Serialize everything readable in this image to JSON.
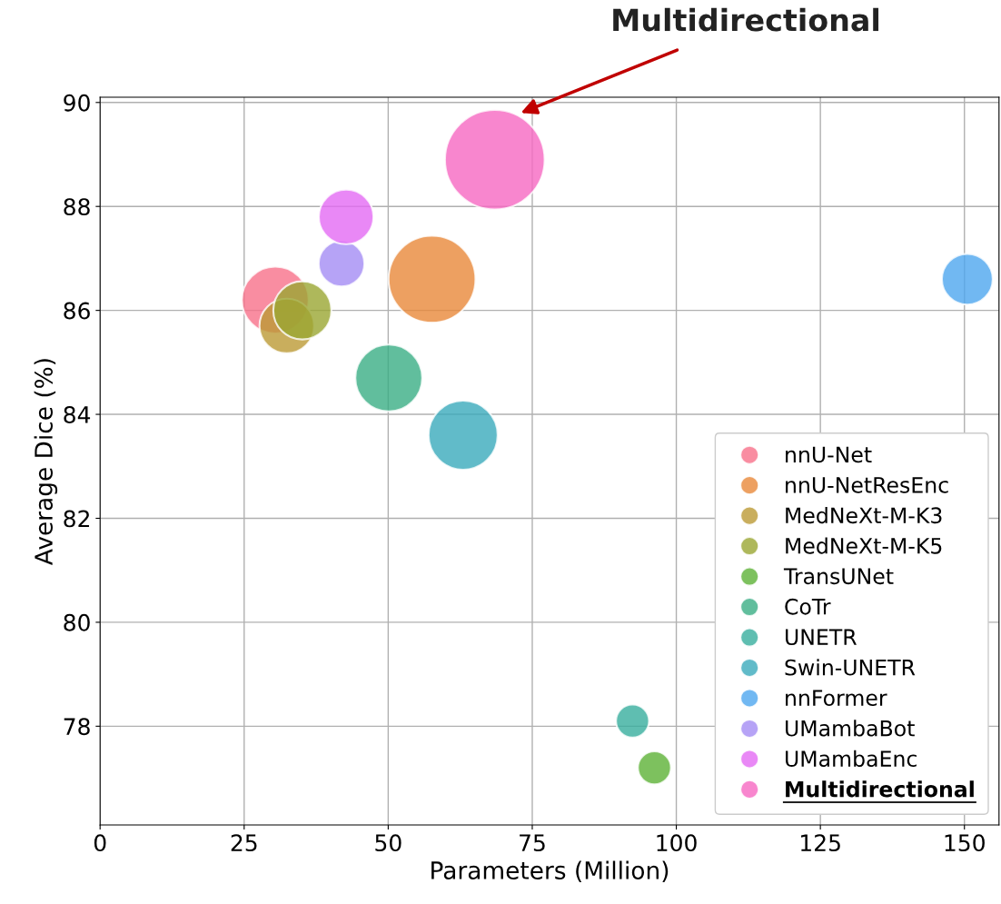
{
  "chart_data": {
    "type": "bubble",
    "xlabel": "Parameters (Million)",
    "ylabel": "Average Dice (%)",
    "xlim": [
      0,
      156
    ],
    "ylim": [
      76.1,
      90.1
    ],
    "xticks": [
      0,
      25,
      50,
      75,
      100,
      125,
      150
    ],
    "yticks": [
      78,
      80,
      82,
      84,
      86,
      88,
      90
    ],
    "grid": true,
    "legend": "bottom right",
    "marker": "circle",
    "annotations": [
      {
        "text": "Multidirectional",
        "x": 73,
        "y": 89.8
      }
    ],
    "series": [
      {
        "name": "nnU-Net",
        "color": "#f77189",
        "x": [
          30.4
        ],
        "values": [
          86.2
        ],
        "sizes": [
          0.45
        ]
      },
      {
        "name": "nnU-NetResEnc",
        "color": "#e8883a",
        "x": [
          57.6
        ],
        "values": [
          86.6
        ],
        "sizes": [
          0.76
        ]
      },
      {
        "name": "MedNeXt-M-K3",
        "color": "#bb9a34",
        "x": [
          32.4
        ],
        "values": [
          85.7
        ],
        "sizes": [
          0.3
        ]
      },
      {
        "name": "MedNeXt-M-K5",
        "color": "#9aa632",
        "x": [
          35.1
        ],
        "values": [
          86.0
        ],
        "sizes": [
          0.34
        ]
      },
      {
        "name": "TransUNet",
        "color": "#5cb136",
        "x": [
          96.2
        ],
        "values": [
          77.2
        ],
        "sizes": [
          0.11
        ]
      },
      {
        "name": "CoTr",
        "color": "#3aae85",
        "x": [
          50.1
        ],
        "values": [
          84.7
        ],
        "sizes": [
          0.45
        ]
      },
      {
        "name": "UNETR",
        "color": "#37ae9e",
        "x": [
          92.4
        ],
        "values": [
          78.1
        ],
        "sizes": [
          0.11
        ]
      },
      {
        "name": "Swin-UNETR",
        "color": "#3aaabb",
        "x": [
          63.0
        ],
        "values": [
          83.6
        ],
        "sizes": [
          0.48
        ]
      },
      {
        "name": "nnFormer",
        "color": "#4ea6ef",
        "x": [
          150.5
        ],
        "values": [
          86.6
        ],
        "sizes": [
          0.26
        ]
      },
      {
        "name": "UMambaBot",
        "color": "#a48cf4",
        "x": [
          41.9
        ],
        "values": [
          86.9
        ],
        "sizes": [
          0.21
        ]
      },
      {
        "name": "UMambaEnc",
        "color": "#e36af4",
        "x": [
          42.7
        ],
        "values": [
          87.8
        ],
        "sizes": [
          0.3
        ]
      },
      {
        "name": "Multidirectional",
        "color": "#f668c2",
        "x": [
          68.5
        ],
        "values": [
          88.9
        ],
        "sizes": [
          1.0
        ]
      }
    ]
  }
}
